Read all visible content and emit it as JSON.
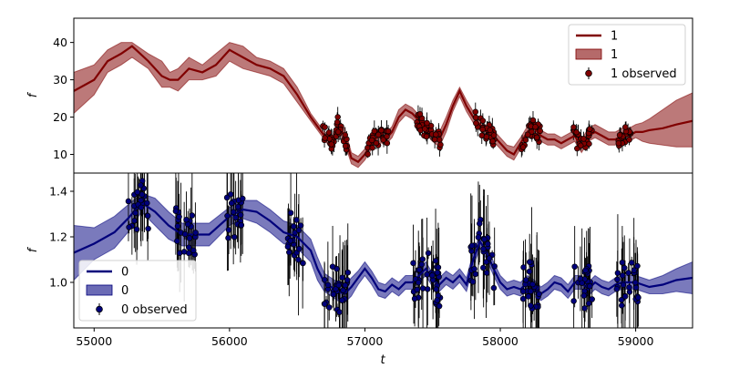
{
  "chart_data": {
    "type": "line",
    "xlabel": "t",
    "xlim": [
      54850,
      59420
    ],
    "xticks": [
      55000,
      56000,
      57000,
      58000,
      59000
    ],
    "panels": [
      {
        "ylabel": "f",
        "ylim": [
          5,
          46.5
        ],
        "yticks": [
          10,
          20,
          30,
          40
        ],
        "color": "#800000",
        "band_color": "#b56a6a",
        "legend": {
          "line": "1",
          "band": "1",
          "points": "1 observed",
          "placement": "upper right"
        },
        "model": {
          "x": [
            54850,
            55000,
            55100,
            55200,
            55280,
            55400,
            55500,
            55560,
            55620,
            55700,
            55800,
            55900,
            56000,
            56100,
            56200,
            56300,
            56400,
            56500,
            56600,
            56700,
            56760,
            56800,
            56850,
            56900,
            56950,
            57000,
            57050,
            57100,
            57150,
            57200,
            57250,
            57300,
            57350,
            57400,
            57450,
            57500,
            57550,
            57600,
            57650,
            57700,
            57750,
            57800,
            57850,
            57900,
            57950,
            58000,
            58050,
            58100,
            58150,
            58200,
            58250,
            58300,
            58350,
            58400,
            58450,
            58500,
            58550,
            58600,
            58650,
            58700,
            58750,
            58800,
            58850,
            58900,
            58950,
            59000,
            59050,
            59100,
            59200,
            59300,
            59420
          ],
          "y": [
            27,
            30,
            35,
            37,
            39,
            35,
            31,
            30,
            30,
            33,
            32,
            34,
            38,
            36,
            34,
            33,
            31,
            26,
            20,
            15,
            13,
            18,
            15,
            9,
            8,
            10,
            13,
            15,
            14,
            16,
            20,
            22,
            21,
            19,
            17,
            15,
            14,
            18,
            23,
            27,
            23,
            20,
            18,
            16,
            15,
            13,
            11,
            10,
            13,
            16,
            17,
            15,
            14,
            14,
            13,
            14,
            15,
            12,
            15,
            16,
            15,
            14,
            14,
            15,
            15,
            16,
            16,
            16.5,
            17,
            18,
            19
          ],
          "band_upper": [
            32,
            34,
            38,
            40,
            40,
            37,
            35,
            32,
            33,
            36,
            34,
            37,
            40,
            39,
            36,
            35,
            33,
            28,
            21,
            16,
            15,
            19,
            17,
            10.5,
            9.5,
            11.5,
            14.5,
            16.5,
            15.5,
            17.5,
            22,
            23.5,
            22.5,
            20.5,
            18.5,
            16.5,
            16,
            20,
            24.5,
            28,
            24.5,
            21.5,
            19.5,
            17.5,
            16.5,
            14.5,
            12.5,
            12,
            14.5,
            17.5,
            18.5,
            16.5,
            15.5,
            15.5,
            14.5,
            15.5,
            16.5,
            14,
            17,
            18,
            17,
            16,
            16,
            17,
            17,
            18,
            18.5,
            19.5,
            22,
            24.5,
            26.5
          ],
          "band_lower": [
            21,
            26,
            32,
            34,
            36,
            33,
            28,
            28,
            27,
            30,
            30,
            31,
            35,
            33,
            32,
            31,
            29,
            24,
            19,
            14,
            11,
            17,
            13,
            7.5,
            6.5,
            8.5,
            11.5,
            13.5,
            12.5,
            14.5,
            18.5,
            20.5,
            19.5,
            17.5,
            15.5,
            13.5,
            12,
            16,
            21.5,
            25.5,
            21.5,
            18.5,
            16.5,
            14.5,
            13.5,
            11.5,
            9.5,
            8.5,
            11.5,
            14.5,
            15.5,
            13.5,
            12.5,
            12.5,
            11.5,
            12.5,
            13.5,
            10.5,
            13.5,
            14.5,
            13.5,
            12.5,
            12.5,
            13.5,
            13.5,
            14.5,
            13.5,
            13,
            12.5,
            12,
            12
          ]
        },
        "observed_regions": [
          [
            56690,
            56880
          ],
          [
            57020,
            57180
          ],
          [
            57380,
            57560
          ],
          [
            57800,
            57960
          ],
          [
            58150,
            58300
          ],
          [
            58540,
            58680
          ],
          [
            58860,
            58970
          ]
        ]
      },
      {
        "ylabel": "f",
        "ylim": [
          0.8,
          1.48
        ],
        "yticks": [
          1.0,
          1.2,
          1.4
        ],
        "color": "#00007b",
        "band_color": "#6b6bb5",
        "legend": {
          "line": "0",
          "band": "0",
          "points": "0 observed",
          "placement": "lower left"
        },
        "model": {
          "x": [
            54850,
            55000,
            55150,
            55250,
            55350,
            55450,
            55550,
            55650,
            55750,
            55850,
            56000,
            56100,
            56200,
            56300,
            56400,
            56500,
            56600,
            56650,
            56700,
            56750,
            56800,
            56850,
            56900,
            56950,
            57000,
            57050,
            57100,
            57150,
            57200,
            57250,
            57300,
            57350,
            57400,
            57450,
            57500,
            57550,
            57600,
            57650,
            57700,
            57750,
            57800,
            57850,
            57900,
            57950,
            58000,
            58050,
            58100,
            58150,
            58200,
            58250,
            58300,
            58350,
            58400,
            58450,
            58500,
            58550,
            58600,
            58650,
            58700,
            58750,
            58800,
            58850,
            58900,
            58950,
            59000,
            59050,
            59100,
            59200,
            59300,
            59420
          ],
          "y": [
            1.13,
            1.17,
            1.22,
            1.28,
            1.35,
            1.31,
            1.25,
            1.21,
            1.21,
            1.21,
            1.29,
            1.32,
            1.31,
            1.27,
            1.22,
            1.2,
            1.14,
            1.06,
            1.0,
            0.98,
            0.96,
            0.95,
            0.98,
            1.02,
            1.06,
            1.02,
            0.97,
            0.96,
            0.99,
            0.97,
            1.0,
            1.0,
            1.03,
            1.06,
            1.01,
            0.99,
            1.02,
            1.0,
            1.03,
            0.99,
            1.1,
            1.18,
            1.13,
            1.06,
            1.0,
            0.97,
            0.98,
            0.97,
            1.0,
            0.98,
            0.95,
            0.97,
            1.0,
            0.99,
            0.96,
            1.0,
            1.0,
            0.97,
            1.0,
            0.98,
            0.97,
            0.99,
            1.0,
            1.0,
            1.0,
            0.99,
            0.98,
            0.99,
            1.01,
            1.02
          ],
          "band_upper": [
            1.25,
            1.24,
            1.29,
            1.34,
            1.39,
            1.37,
            1.31,
            1.26,
            1.26,
            1.26,
            1.33,
            1.36,
            1.36,
            1.32,
            1.27,
            1.25,
            1.19,
            1.11,
            1.04,
            1.02,
            1.0,
            0.99,
            1.02,
            1.05,
            1.09,
            1.05,
            1.0,
            0.99,
            1.02,
            1.0,
            1.03,
            1.03,
            1.06,
            1.09,
            1.04,
            1.02,
            1.05,
            1.03,
            1.06,
            1.02,
            1.13,
            1.21,
            1.16,
            1.09,
            1.03,
            1.0,
            1.01,
            1.0,
            1.03,
            1.01,
            0.98,
            1.0,
            1.03,
            1.02,
            0.99,
            1.03,
            1.03,
            1.0,
            1.03,
            1.01,
            1.0,
            1.02,
            1.03,
            1.03,
            1.03,
            1.02,
            1.01,
            1.03,
            1.06,
            1.09
          ],
          "band_lower": [
            1.01,
            1.1,
            1.15,
            1.22,
            1.31,
            1.25,
            1.19,
            1.16,
            1.16,
            1.16,
            1.25,
            1.28,
            1.26,
            1.22,
            1.17,
            1.15,
            1.09,
            1.01,
            0.96,
            0.94,
            0.92,
            0.91,
            0.94,
            0.99,
            1.03,
            0.99,
            0.94,
            0.93,
            0.96,
            0.94,
            0.97,
            0.97,
            1.0,
            1.03,
            0.98,
            0.96,
            0.99,
            0.97,
            1.0,
            0.96,
            1.07,
            1.15,
            1.1,
            1.03,
            0.97,
            0.94,
            0.95,
            0.94,
            0.97,
            0.95,
            0.92,
            0.94,
            0.97,
            0.96,
            0.93,
            0.97,
            0.97,
            0.94,
            0.97,
            0.95,
            0.94,
            0.96,
            0.97,
            0.97,
            0.97,
            0.96,
            0.95,
            0.95,
            0.96,
            0.95
          ]
        },
        "observed_regions": [
          [
            55250,
            55400
          ],
          [
            55600,
            55750
          ],
          [
            55980,
            56100
          ],
          [
            56430,
            56550
          ],
          [
            56700,
            56880
          ],
          [
            57350,
            57560
          ],
          [
            57780,
            57960
          ],
          [
            58150,
            58300
          ],
          [
            58540,
            58680
          ],
          [
            58860,
            59020
          ]
        ]
      }
    ]
  }
}
